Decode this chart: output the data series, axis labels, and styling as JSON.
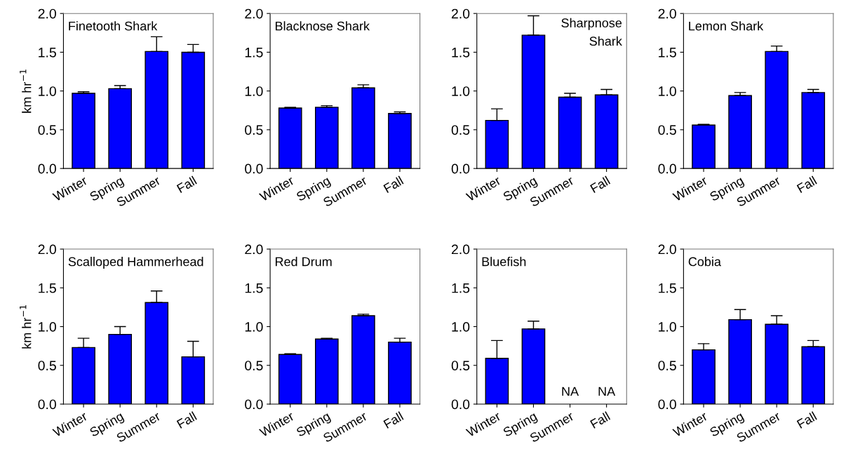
{
  "chart_data": [
    {
      "type": "bar",
      "title": "Finetooth Shark",
      "ylabel": "km hr$^{−1}$",
      "categories": [
        "Winter",
        "Spring",
        "Summer",
        "Fall"
      ],
      "values": [
        0.97,
        1.03,
        1.51,
        1.5
      ],
      "errors": [
        [
          0.97,
          0.99
        ],
        [
          1.03,
          1.07
        ],
        [
          1.51,
          1.7
        ],
        [
          1.5,
          1.6
        ]
      ],
      "color": "#0000ff",
      "ylim": [
        0,
        2
      ],
      "yticks": [
        {
          "value": 0,
          "label": "0.0"
        },
        {
          "value": 0.5,
          "label": "0.5"
        },
        {
          "value": 1,
          "label": "1.0"
        },
        {
          "value": 1.5,
          "label": "1.5"
        },
        {
          "value": 2,
          "label": "2.0"
        }
      ],
      "grid": false
    },
    {
      "type": "bar",
      "title": "Blacknose Shark",
      "categories": [
        "Winter",
        "Spring",
        "Summer",
        "Fall"
      ],
      "values": [
        0.78,
        0.79,
        1.04,
        0.71
      ],
      "errors": [
        [
          0.78,
          0.79
        ],
        [
          0.79,
          0.81
        ],
        [
          1.04,
          1.08
        ],
        [
          0.71,
          0.73
        ]
      ],
      "color": "#0000ff",
      "ylim": [
        0,
        2
      ],
      "yticks": [
        {
          "value": 0,
          "label": "0.0"
        },
        {
          "value": 0.5,
          "label": "0.5"
        },
        {
          "value": 1,
          "label": "1.0"
        },
        {
          "value": 1.5,
          "label": "1.5"
        },
        {
          "value": 2,
          "label": "2.0"
        }
      ],
      "grid": false
    },
    {
      "type": "bar",
      "title": "Sharpnose\nShark",
      "categories": [
        "Winter",
        "Spring",
        "Summer",
        "Fall"
      ],
      "values": [
        0.62,
        1.72,
        0.92,
        0.95
      ],
      "errors": [
        [
          0.62,
          0.77
        ],
        [
          1.72,
          1.97
        ],
        [
          0.92,
          0.97
        ],
        [
          0.95,
          1.02
        ]
      ],
      "color": "#0000ff",
      "ylim": [
        0,
        2
      ],
      "yticks": [
        {
          "value": 0,
          "label": "0.0"
        },
        {
          "value": 0.5,
          "label": "0.5"
        },
        {
          "value": 1,
          "label": "1.0"
        },
        {
          "value": 1.5,
          "label": "1.5"
        },
        {
          "value": 2,
          "label": "2.0"
        }
      ],
      "grid": false
    },
    {
      "type": "bar",
      "title": "Lemon Shark",
      "categories": [
        "Winter",
        "Spring",
        "Summer",
        "Fall"
      ],
      "values": [
        0.56,
        0.94,
        1.51,
        0.98
      ],
      "errors": [
        [
          0.56,
          0.57
        ],
        [
          0.94,
          0.98
        ],
        [
          1.51,
          1.58
        ],
        [
          0.98,
          1.02
        ]
      ],
      "color": "#0000ff",
      "ylim": [
        0,
        2
      ],
      "yticks": [
        {
          "value": 0,
          "label": "0.0"
        },
        {
          "value": 0.5,
          "label": "0.5"
        },
        {
          "value": 1,
          "label": "1.0"
        },
        {
          "value": 1.5,
          "label": "1.5"
        },
        {
          "value": 2,
          "label": "2.0"
        }
      ],
      "grid": false
    },
    {
      "type": "bar",
      "title": "Scalloped Hammerhead",
      "ylabel": "km hr$^{−1}$",
      "categories": [
        "Winter",
        "Spring",
        "Summer",
        "Fall"
      ],
      "values": [
        0.73,
        0.9,
        1.31,
        0.61
      ],
      "errors": [
        [
          0.73,
          0.85
        ],
        [
          0.9,
          1.0
        ],
        [
          1.31,
          1.46
        ],
        [
          0.61,
          0.81
        ]
      ],
      "color": "#0000ff",
      "ylim": [
        0,
        2
      ],
      "yticks": [
        {
          "value": 0,
          "label": "0.0"
        },
        {
          "value": 0.5,
          "label": "0.5"
        },
        {
          "value": 1,
          "label": "1.0"
        },
        {
          "value": 1.5,
          "label": "1.5"
        },
        {
          "value": 2,
          "label": "2.0"
        }
      ],
      "grid": false
    },
    {
      "type": "bar",
      "title": "Red Drum",
      "categories": [
        "Winter",
        "Spring",
        "Summer",
        "Fall"
      ],
      "values": [
        0.64,
        0.84,
        1.14,
        0.8
      ],
      "errors": [
        [
          0.64,
          0.65
        ],
        [
          0.84,
          0.85
        ],
        [
          1.14,
          1.16
        ],
        [
          0.8,
          0.85
        ]
      ],
      "color": "#0000ff",
      "ylim": [
        0,
        2
      ],
      "yticks": [
        {
          "value": 0,
          "label": "0.0"
        },
        {
          "value": 0.5,
          "label": "0.5"
        },
        {
          "value": 1,
          "label": "1.0"
        },
        {
          "value": 1.5,
          "label": "1.5"
        },
        {
          "value": 2,
          "label": "2.0"
        }
      ],
      "grid": false
    },
    {
      "type": "bar",
      "title": "Bluefish",
      "categories": [
        "Winter",
        "Spring",
        "Summer",
        "Fall"
      ],
      "values": [
        0.59,
        0.97,
        null,
        null
      ],
      "errors": [
        [
          0.59,
          0.82
        ],
        [
          0.97,
          1.07
        ],
        null,
        null
      ],
      "color": "#0000ff",
      "ylim": [
        0,
        2
      ],
      "yticks": [
        {
          "value": 0,
          "label": "0.0"
        },
        {
          "value": 0.5,
          "label": "0.5"
        },
        {
          "value": 1,
          "label": "1.0"
        },
        {
          "value": 1.5,
          "label": "1.5"
        },
        {
          "value": 2,
          "label": "2.0"
        }
      ],
      "grid": false,
      "annotations": [
        "NA",
        "NA"
      ]
    },
    {
      "type": "bar",
      "title": "Cobia",
      "categories": [
        "Winter",
        "Spring",
        "Summer",
        "Fall"
      ],
      "values": [
        0.7,
        1.09,
        1.03,
        0.74
      ],
      "errors": [
        [
          0.7,
          0.78
        ],
        [
          1.09,
          1.22
        ],
        [
          1.03,
          1.14
        ],
        [
          0.74,
          0.82
        ]
      ],
      "color": "#0000ff",
      "ylim": [
        0,
        2
      ],
      "yticks": [
        {
          "value": 0,
          "label": "0.0"
        },
        {
          "value": 0.5,
          "label": "0.5"
        },
        {
          "value": 1,
          "label": "1.0"
        },
        {
          "value": 1.5,
          "label": "1.5"
        },
        {
          "value": 2,
          "label": "2.0"
        }
      ],
      "grid": false
    }
  ]
}
